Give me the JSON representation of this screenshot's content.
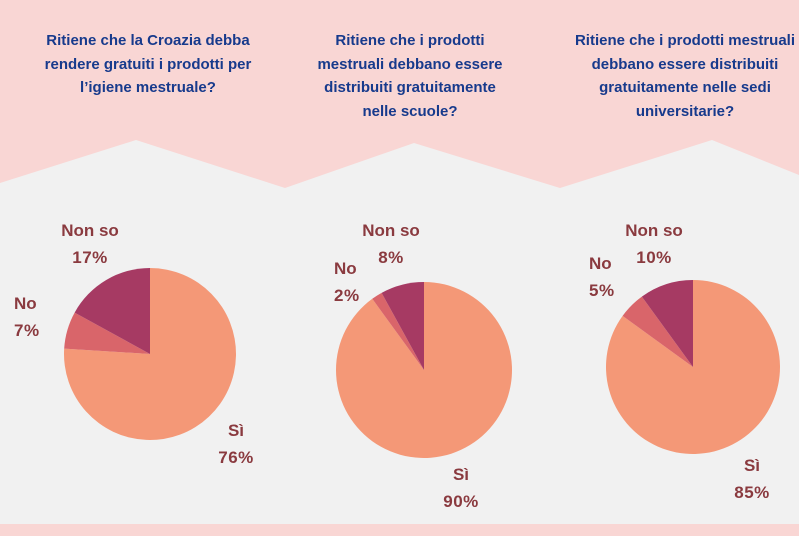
{
  "colors": {
    "header_bg": "#f9d6d4",
    "panel_bg": "#f1f1f1",
    "question_text": "#173a8c",
    "label_text": "#8a3a3f",
    "si": "#f49877",
    "no": "#d9656a",
    "non_so": "#a63a63"
  },
  "panels": [
    {
      "question": "Ritiene che la Croazia debba rendere gratuiti i prodotti per l’igiene mestruale?"
    },
    {
      "question": "Ritiene che i prodotti mestruali debbano essere distribuiti gratuitamente nelle scuole?"
    },
    {
      "question": "Ritiene che i prodotti mestruali debbano essere distribuiti gratuitamente nelle sedi universitarie?"
    }
  ],
  "chart_data": [
    {
      "type": "pie",
      "title": "Ritiene che la Croazia debba rendere gratuiti i prodotti per l’igiene mestruale?",
      "categories": [
        "Sì",
        "No",
        "Non so"
      ],
      "values": [
        76,
        7,
        17
      ],
      "labels": [
        "76%",
        "7%",
        "17%"
      ]
    },
    {
      "type": "pie",
      "title": "Ritiene che i prodotti mestruali debbano essere distribuiti gratuitamente nelle scuole?",
      "categories": [
        "Sì",
        "No",
        "Non so"
      ],
      "values": [
        90,
        2,
        8
      ],
      "labels": [
        "90%",
        "2%",
        "8%"
      ]
    },
    {
      "type": "pie",
      "title": "Ritiene che i prodotti mestruali debbano essere distribuiti gratuitamente nelle sedi universitarie?",
      "categories": [
        "Sì",
        "No",
        "Non so"
      ],
      "values": [
        85,
        5,
        10
      ],
      "labels": [
        "85%",
        "5%",
        "10%"
      ]
    }
  ]
}
